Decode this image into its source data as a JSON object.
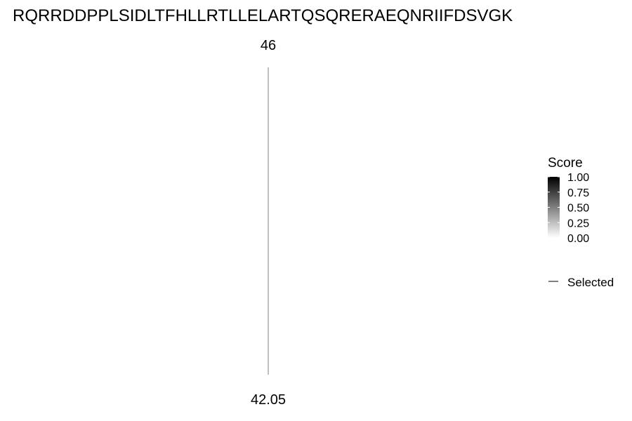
{
  "chart_data": {
    "type": "line",
    "title": "RQRRDDPPLSIDLTFHLLRTLLELARTQSQRERAEQNRIIFDSVGK",
    "series": [
      {
        "top_label": "46",
        "bottom_label": "42.05",
        "color": "#808080"
      }
    ],
    "legend": {
      "title": "Score",
      "ticks": [
        "1.00",
        "0.75",
        "0.50",
        "0.25",
        "0.00"
      ],
      "gradient_range": [
        0,
        1
      ],
      "gradient_colors": [
        "#ffffff",
        "#000000"
      ],
      "line_label": "Selected",
      "line_color": "#000000",
      "placement": "right"
    },
    "grid": false
  }
}
